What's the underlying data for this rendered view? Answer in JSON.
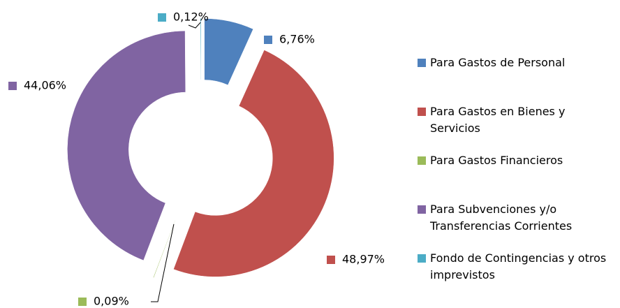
{
  "chart_data": {
    "type": "donut",
    "categories": [
      "Para Gastos de Personal",
      "Para Gastos en Bienes y Servicios",
      "Para Gastos Financieros",
      "Para Subvenciones y/o Transferencias Corrientes",
      "Fondo de Contingencias y otros imprevistos"
    ],
    "values": [
      6.76,
      48.97,
      0.09,
      44.06,
      0.12
    ],
    "value_labels": [
      "6,76%",
      "48,97%",
      "0,09%",
      "44,06%",
      "0,12%"
    ],
    "colors": [
      "#4f81bd",
      "#c0504d",
      "#9bbb59",
      "#8064a2",
      "#4bacc6"
    ],
    "legend": "right"
  }
}
